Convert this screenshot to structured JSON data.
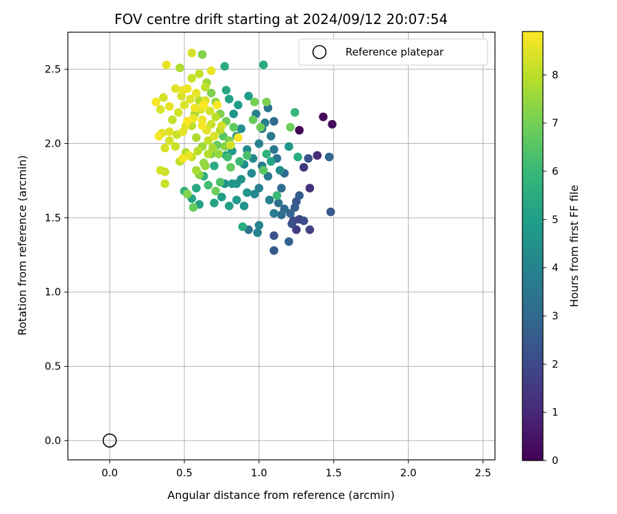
{
  "chart_data": {
    "type": "scatter",
    "title": "FOV centre drift starting at 2024/09/12 20:07:54",
    "xlabel": "Angular distance from reference (arcmin)",
    "ylabel": "Rotation from reference (arcmin)",
    "xlim": [
      -0.28,
      2.58
    ],
    "ylim": [
      -0.13,
      2.75
    ],
    "xticks": [
      "0.0",
      "0.5",
      "1.0",
      "1.5",
      "2.0",
      "2.5"
    ],
    "yticks": [
      "0.0",
      "0.5",
      "1.0",
      "1.5",
      "2.0",
      "2.5"
    ],
    "grid": true,
    "legend": {
      "position": "top-right",
      "entries": [
        "Reference platepar"
      ]
    },
    "colorbar": {
      "label": "Hours from first FF file",
      "colormap": "viridis",
      "range": [
        0,
        8.9
      ],
      "ticks": [
        "0",
        "1",
        "2",
        "3",
        "4",
        "5",
        "6",
        "7",
        "8"
      ]
    },
    "reference_point": {
      "x": 0.0,
      "y": 0.0
    },
    "points": [
      [
        1.27,
        2.09,
        0.1
      ],
      [
        1.43,
        2.18,
        0.2
      ],
      [
        1.49,
        2.13,
        0.3
      ],
      [
        1.39,
        1.92,
        1.1
      ],
      [
        1.34,
        1.7,
        1.3
      ],
      [
        1.3,
        1.84,
        1.4
      ],
      [
        1.25,
        1.42,
        1.6
      ],
      [
        1.34,
        1.42,
        1.8
      ],
      [
        1.23,
        1.48,
        2.0
      ],
      [
        1.27,
        1.49,
        1.9
      ],
      [
        1.3,
        1.48,
        2.1
      ],
      [
        1.22,
        1.46,
        2.2
      ],
      [
        1.1,
        1.38,
        2.3
      ],
      [
        1.1,
        1.28,
        2.5
      ],
      [
        1.2,
        1.34,
        2.8
      ],
      [
        1.25,
        1.61,
        2.4
      ],
      [
        1.27,
        1.65,
        2.6
      ],
      [
        1.24,
        1.57,
        2.7
      ],
      [
        1.33,
        1.9,
        2.3
      ],
      [
        1.47,
        1.91,
        2.9
      ],
      [
        1.48,
        1.54,
        2.5
      ],
      [
        1.21,
        1.53,
        2.9
      ],
      [
        1.17,
        1.56,
        3.0
      ],
      [
        1.15,
        1.52,
        3.1
      ],
      [
        1.13,
        1.6,
        3.3
      ],
      [
        1.15,
        1.7,
        3.2
      ],
      [
        1.17,
        1.8,
        3.0
      ],
      [
        1.12,
        1.9,
        3.4
      ],
      [
        1.1,
        1.96,
        3.5
      ],
      [
        1.08,
        2.05,
        3.6
      ],
      [
        1.1,
        2.15,
        3.1
      ],
      [
        1.06,
        2.24,
        3.4
      ],
      [
        1.02,
        2.1,
        3.7
      ],
      [
        0.98,
        2.2,
        3.8
      ],
      [
        1.04,
        2.14,
        3.9
      ],
      [
        1.0,
        2.0,
        4.0
      ],
      [
        0.96,
        1.9,
        4.1
      ],
      [
        1.02,
        1.85,
        3.8
      ],
      [
        1.06,
        1.78,
        3.6
      ],
      [
        1.0,
        1.7,
        3.9
      ],
      [
        0.95,
        1.8,
        4.2
      ],
      [
        0.92,
        1.96,
        4.3
      ],
      [
        0.9,
        1.86,
        4.4
      ],
      [
        0.88,
        1.76,
        4.5
      ],
      [
        0.85,
        1.73,
        4.6
      ],
      [
        0.82,
        1.73,
        4.7
      ],
      [
        0.77,
        1.73,
        4.5
      ],
      [
        0.92,
        1.67,
        4.6
      ],
      [
        0.97,
        1.66,
        4.2
      ],
      [
        1.07,
        1.62,
        4.0
      ],
      [
        1.1,
        1.53,
        3.8
      ],
      [
        1.0,
        1.45,
        4.1
      ],
      [
        0.99,
        1.4,
        3.9
      ],
      [
        0.93,
        1.42,
        3.4
      ],
      [
        0.9,
        1.58,
        4.6
      ],
      [
        0.85,
        1.62,
        4.8
      ],
      [
        0.8,
        1.58,
        5.0
      ],
      [
        0.75,
        1.64,
        4.9
      ],
      [
        0.7,
        1.6,
        5.2
      ],
      [
        0.6,
        1.59,
        5.1
      ],
      [
        0.58,
        1.7,
        5.3
      ],
      [
        0.55,
        1.63,
        5.2
      ],
      [
        0.5,
        1.68,
        5.8
      ],
      [
        0.63,
        1.78,
        5.6
      ],
      [
        0.7,
        1.85,
        5.4
      ],
      [
        0.78,
        1.92,
        5.0
      ],
      [
        0.82,
        1.95,
        4.8
      ],
      [
        0.85,
        2.05,
        4.5
      ],
      [
        0.88,
        2.1,
        4.4
      ],
      [
        0.83,
        2.2,
        4.6
      ],
      [
        0.86,
        2.26,
        4.9
      ],
      [
        0.78,
        2.36,
        5.3
      ],
      [
        0.8,
        2.3,
        5.1
      ],
      [
        0.77,
        2.52,
        5.5
      ],
      [
        1.03,
        2.53,
        5.4
      ],
      [
        0.93,
        2.32,
        5.0
      ],
      [
        1.24,
        2.21,
        5.9
      ],
      [
        1.26,
        1.91,
        5.5
      ],
      [
        1.2,
        1.98,
        4.7
      ],
      [
        1.14,
        1.82,
        4.3
      ],
      [
        1.05,
        1.93,
        5.7
      ],
      [
        1.08,
        1.88,
        5.2
      ],
      [
        1.12,
        1.65,
        6.0
      ],
      [
        0.89,
        1.44,
        5.5
      ],
      [
        1.03,
        1.82,
        6.6
      ],
      [
        0.96,
        2.16,
        6.8
      ],
      [
        1.01,
        2.11,
        6.9
      ],
      [
        1.05,
        2.28,
        7.1
      ],
      [
        0.97,
        2.28,
        7.0
      ],
      [
        1.21,
        2.11,
        6.9
      ],
      [
        0.92,
        1.92,
        6.3
      ],
      [
        0.87,
        1.88,
        6.0
      ],
      [
        0.81,
        1.84,
        6.7
      ],
      [
        0.79,
        1.91,
        6.1
      ],
      [
        0.74,
        1.74,
        6.4
      ],
      [
        0.66,
        1.72,
        6.2
      ],
      [
        0.71,
        1.68,
        6.9
      ],
      [
        0.56,
        1.57,
        6.8
      ],
      [
        0.52,
        1.66,
        7.2
      ],
      [
        0.6,
        1.79,
        7.3
      ],
      [
        0.64,
        1.85,
        7.5
      ],
      [
        0.68,
        1.93,
        7.0
      ],
      [
        0.72,
        1.99,
        6.8
      ],
      [
        0.76,
        2.05,
        6.5
      ],
      [
        0.8,
        2.02,
        7.1
      ],
      [
        0.83,
        2.11,
        6.7
      ],
      [
        0.78,
        2.15,
        6.9
      ],
      [
        0.74,
        2.2,
        7.2
      ],
      [
        0.71,
        2.28,
        7.4
      ],
      [
        0.68,
        2.34,
        7.1
      ],
      [
        0.65,
        2.41,
        7.6
      ],
      [
        0.62,
        2.6,
        7.2
      ],
      [
        0.6,
        2.29,
        7.9
      ],
      [
        0.57,
        2.2,
        7.7
      ],
      [
        0.55,
        2.12,
        8.0
      ],
      [
        0.58,
        2.04,
        7.8
      ],
      [
        0.62,
        1.98,
        7.6
      ],
      [
        0.66,
        1.93,
        7.9
      ],
      [
        0.63,
        1.87,
        7.4
      ],
      [
        0.58,
        1.82,
        7.7
      ],
      [
        0.55,
        1.91,
        8.1
      ],
      [
        0.51,
        1.94,
        7.9
      ],
      [
        0.47,
        1.88,
        8.0
      ],
      [
        0.44,
        1.98,
        8.2
      ],
      [
        0.4,
        2.02,
        8.3
      ],
      [
        0.37,
        1.97,
        8.4
      ],
      [
        0.35,
        2.07,
        8.5
      ],
      [
        0.33,
        2.05,
        8.8
      ],
      [
        0.34,
        1.82,
        8.3
      ],
      [
        0.37,
        1.81,
        8.2
      ],
      [
        0.37,
        1.73,
        8.2
      ],
      [
        0.42,
        2.16,
        8.1
      ],
      [
        0.46,
        2.21,
        8.3
      ],
      [
        0.5,
        2.26,
        8.4
      ],
      [
        0.54,
        2.3,
        8.5
      ],
      [
        0.58,
        2.34,
        8.6
      ],
      [
        0.52,
        2.37,
        8.7
      ],
      [
        0.48,
        2.32,
        8.4
      ],
      [
        0.44,
        2.37,
        8.5
      ],
      [
        0.4,
        2.25,
        8.6
      ],
      [
        0.36,
        2.31,
        8.3
      ],
      [
        0.34,
        2.23,
        8.4
      ],
      [
        0.31,
        2.28,
        8.8
      ],
      [
        0.38,
        2.53,
        8.6
      ],
      [
        0.47,
        2.51,
        7.8
      ],
      [
        0.55,
        2.44,
        8.2
      ],
      [
        0.55,
        2.61,
        8.4
      ],
      [
        0.6,
        2.47,
        8.1
      ],
      [
        0.64,
        2.38,
        8.0
      ],
      [
        0.68,
        2.49,
        8.6
      ],
      [
        0.62,
        2.16,
        8.7
      ],
      [
        0.65,
        2.09,
        8.5
      ],
      [
        0.68,
        2.13,
        8.2
      ],
      [
        0.71,
        2.18,
        8.0
      ],
      [
        0.74,
        2.09,
        7.9
      ],
      [
        0.7,
        2.05,
        8.4
      ],
      [
        0.66,
        2.02,
        8.1
      ],
      [
        0.69,
        1.97,
        7.7
      ],
      [
        0.73,
        1.93,
        7.5
      ],
      [
        0.77,
        1.98,
        7.3
      ],
      [
        0.81,
        1.99,
        8.3
      ],
      [
        0.86,
        2.04,
        8.8
      ],
      [
        0.72,
        2.26,
        8.8
      ],
      [
        0.75,
        2.12,
        8.3
      ],
      [
        0.63,
        2.26,
        8.9
      ],
      [
        0.57,
        2.24,
        8.7
      ],
      [
        0.52,
        2.15,
        8.9
      ],
      [
        0.49,
        2.08,
        8.6
      ],
      [
        0.45,
        2.06,
        8.2
      ],
      [
        0.4,
        2.08,
        8.5
      ],
      [
        0.49,
        1.9,
        8.8
      ],
      [
        0.53,
        1.92,
        8.6
      ],
      [
        0.59,
        1.95,
        8.0
      ],
      [
        0.67,
        2.22,
        8.3
      ],
      [
        0.61,
        2.23,
        8.5
      ],
      [
        0.56,
        2.17,
        8.7
      ],
      [
        0.62,
        2.12,
        8.8
      ],
      [
        0.49,
        2.36,
        8.6
      ],
      [
        0.51,
        2.12,
        8.5
      ],
      [
        0.64,
        2.29,
        8.4
      ]
    ]
  }
}
